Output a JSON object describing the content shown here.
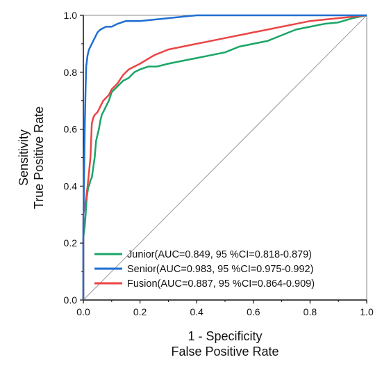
{
  "chart_data": {
    "type": "line",
    "xlabel": [
      "1 - Specificity",
      "False Positive Rate"
    ],
    "ylabel": [
      "Sensitivity",
      "True Positive Rate"
    ],
    "xlim": [
      0,
      1
    ],
    "ylim": [
      0,
      1
    ],
    "xticks": [
      "0.0",
      "0.2",
      "0.4",
      "0.6",
      "0.8",
      "1.0"
    ],
    "yticks": [
      "0.0",
      "0.2",
      "0.4",
      "0.6",
      "0.8",
      "1.0"
    ],
    "grid": false,
    "legend_position": "bottom-right",
    "series": [
      {
        "name": "Junior(AUC=0.849, 95 %CI=0.818-0.879)",
        "color": "#1aa567",
        "x": [
          0,
          0,
          0.005,
          0.008,
          0.01,
          0.012,
          0.015,
          0.018,
          0.02,
          0.025,
          0.03,
          0.04,
          0.045,
          0.05,
          0.055,
          0.06,
          0.065,
          0.07,
          0.08,
          0.09,
          0.1,
          0.12,
          0.14,
          0.16,
          0.18,
          0.2,
          0.23,
          0.26,
          0.3,
          0.35,
          0.4,
          0.45,
          0.5,
          0.55,
          0.6,
          0.65,
          0.7,
          0.75,
          0.8,
          0.85,
          0.9,
          0.95,
          1.0
        ],
        "y": [
          0,
          0.22,
          0.26,
          0.3,
          0.33,
          0.36,
          0.38,
          0.4,
          0.4,
          0.42,
          0.43,
          0.5,
          0.56,
          0.58,
          0.6,
          0.63,
          0.65,
          0.66,
          0.68,
          0.7,
          0.73,
          0.75,
          0.77,
          0.78,
          0.8,
          0.81,
          0.82,
          0.82,
          0.83,
          0.84,
          0.85,
          0.86,
          0.87,
          0.89,
          0.9,
          0.91,
          0.93,
          0.95,
          0.96,
          0.97,
          0.975,
          0.99,
          1.0
        ]
      },
      {
        "name": "Senior(AUC=0.983, 95 %CI=0.975-0.992)",
        "color": "#1f6fd2",
        "x": [
          0,
          0,
          0.005,
          0.008,
          0.01,
          0.015,
          0.02,
          0.03,
          0.04,
          0.05,
          0.06,
          0.08,
          0.1,
          0.12,
          0.15,
          0.2,
          0.25,
          0.3,
          0.35,
          0.4,
          0.5,
          0.6,
          0.8,
          1.0
        ],
        "y": [
          0,
          0.25,
          0.6,
          0.75,
          0.82,
          0.86,
          0.88,
          0.9,
          0.92,
          0.94,
          0.95,
          0.96,
          0.96,
          0.97,
          0.98,
          0.98,
          0.985,
          0.99,
          0.995,
          1.0,
          1.0,
          1.0,
          1.0,
          1.0
        ]
      },
      {
        "name": "Fusion(AUC=0.887, 95 %CI=0.864-0.909)",
        "color": "#ea4545",
        "x": [
          0,
          0,
          0.005,
          0.01,
          0.015,
          0.02,
          0.025,
          0.03,
          0.035,
          0.04,
          0.05,
          0.06,
          0.07,
          0.08,
          0.09,
          0.1,
          0.12,
          0.14,
          0.16,
          0.18,
          0.2,
          0.25,
          0.3,
          0.35,
          0.4,
          0.45,
          0.5,
          0.55,
          0.6,
          0.65,
          0.7,
          0.75,
          0.8,
          0.85,
          0.9,
          0.95,
          1.0
        ],
        "y": [
          0,
          0.3,
          0.33,
          0.36,
          0.4,
          0.45,
          0.5,
          0.62,
          0.64,
          0.65,
          0.66,
          0.68,
          0.7,
          0.71,
          0.72,
          0.74,
          0.76,
          0.79,
          0.81,
          0.82,
          0.83,
          0.86,
          0.88,
          0.89,
          0.9,
          0.91,
          0.92,
          0.93,
          0.94,
          0.95,
          0.96,
          0.97,
          0.98,
          0.985,
          0.99,
          0.995,
          1.0
        ]
      }
    ]
  }
}
